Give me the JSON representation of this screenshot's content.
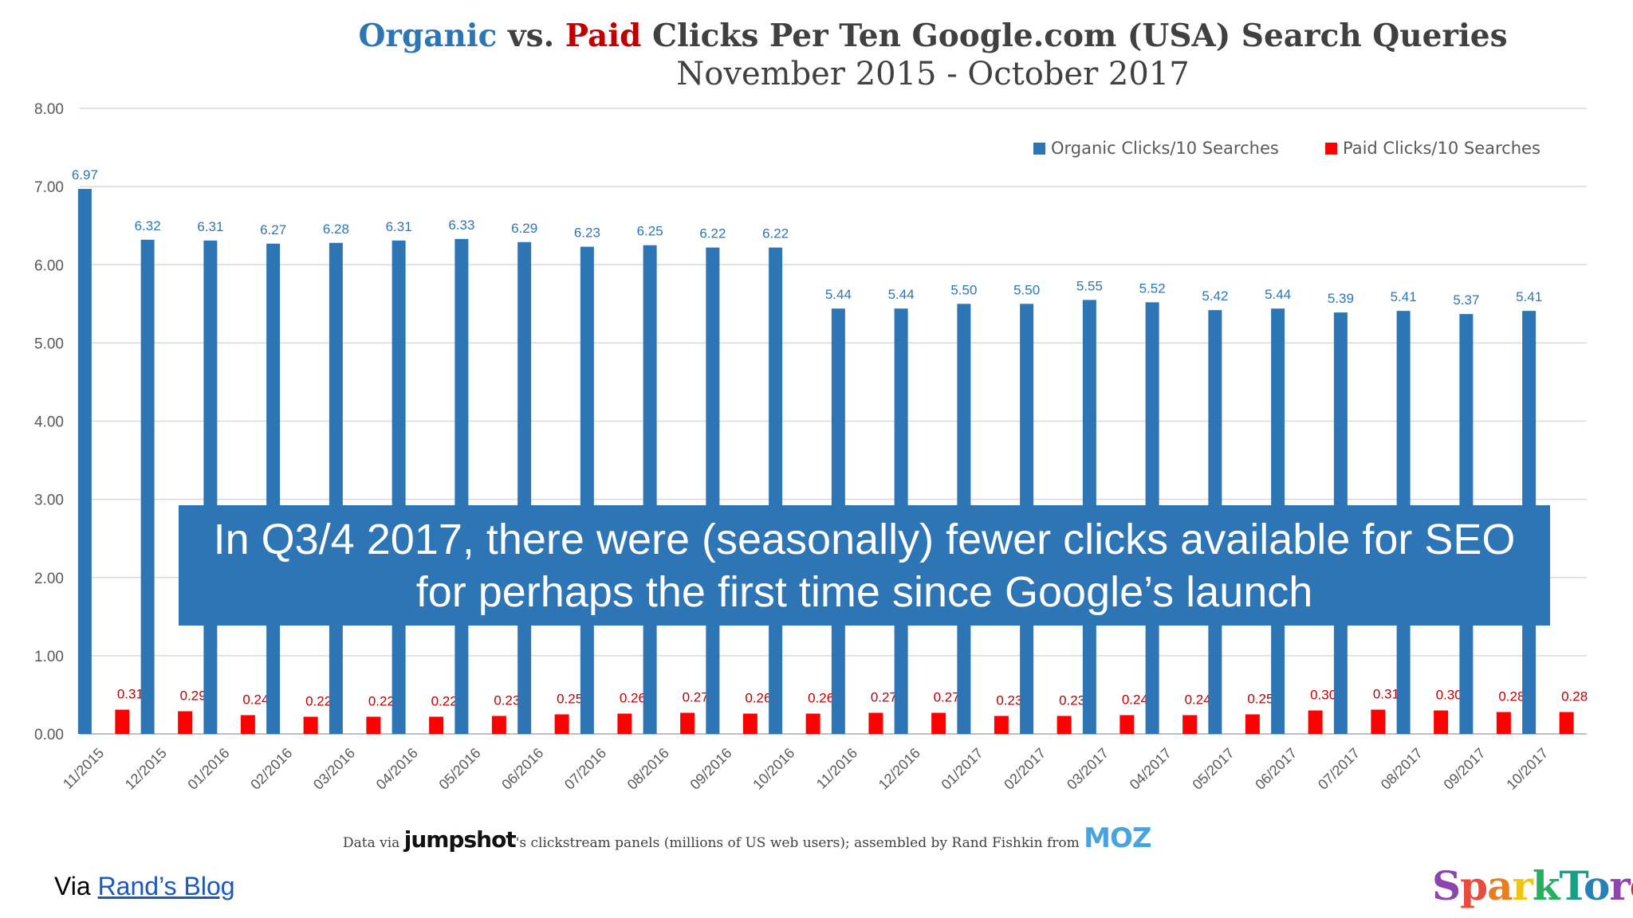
{
  "title": {
    "organic": "Organic",
    "vs": " vs. ",
    "paid": "Paid",
    "rest": " Clicks Per Ten Google.com (USA) Search Queries",
    "subtitle": "November 2015 - October 2017"
  },
  "callout": {
    "line1": "In Q3/4 2017, there were (seasonally) fewer clicks available for SEO",
    "line2": "for perhaps the first time since Google’s launch"
  },
  "footer": {
    "prefix": "Data via ",
    "jumpshot": "jumpshot",
    "middle": "'s clickstream panels (millions of US web users); assembled by Rand Fishkin from ",
    "moz": "MOZ"
  },
  "via": {
    "prefix": "Via ",
    "link": "Rand’s Blog"
  },
  "brand": "SparkToro",
  "colors": {
    "organic": "#2e75b6",
    "paid": "#ff0000",
    "grid": "#d9d9d9",
    "axis_text": "#595959"
  },
  "chart_data": {
    "type": "bar",
    "title": "Organic vs. Paid Clicks Per Ten Google.com (USA) Search Queries",
    "subtitle": "November 2015 - October 2017",
    "categories": [
      "11/2015",
      "12/2015",
      "01/2016",
      "02/2016",
      "03/2016",
      "04/2016",
      "05/2016",
      "06/2016",
      "07/2016",
      "08/2016",
      "09/2016",
      "10/2016",
      "11/2016",
      "12/2016",
      "01/2017",
      "02/2017",
      "03/2017",
      "04/2017",
      "05/2017",
      "06/2017",
      "07/2017",
      "08/2017",
      "09/2017",
      "10/2017"
    ],
    "series": [
      {
        "name": "Organic Clicks/10 Searches",
        "values": [
          6.97,
          6.32,
          6.31,
          6.27,
          6.28,
          6.31,
          6.33,
          6.29,
          6.23,
          6.25,
          6.22,
          6.22,
          5.44,
          5.44,
          5.5,
          5.5,
          5.55,
          5.52,
          5.42,
          5.44,
          5.39,
          5.41,
          5.37,
          5.41
        ]
      },
      {
        "name": "Paid Clicks/10 Searches",
        "values": [
          0.31,
          0.29,
          0.24,
          0.22,
          0.22,
          0.22,
          0.23,
          0.25,
          0.26,
          0.27,
          0.26,
          0.26,
          0.27,
          0.27,
          0.23,
          0.23,
          0.24,
          0.24,
          0.25,
          0.3,
          0.31,
          0.3,
          0.28,
          0.28
        ]
      }
    ],
    "yticks": [
      "0.00",
      "1.00",
      "2.00",
      "3.00",
      "4.00",
      "5.00",
      "6.00",
      "7.00",
      "8.00"
    ],
    "ylim": [
      0,
      8
    ],
    "grid": true,
    "legend_position": "top-right"
  }
}
